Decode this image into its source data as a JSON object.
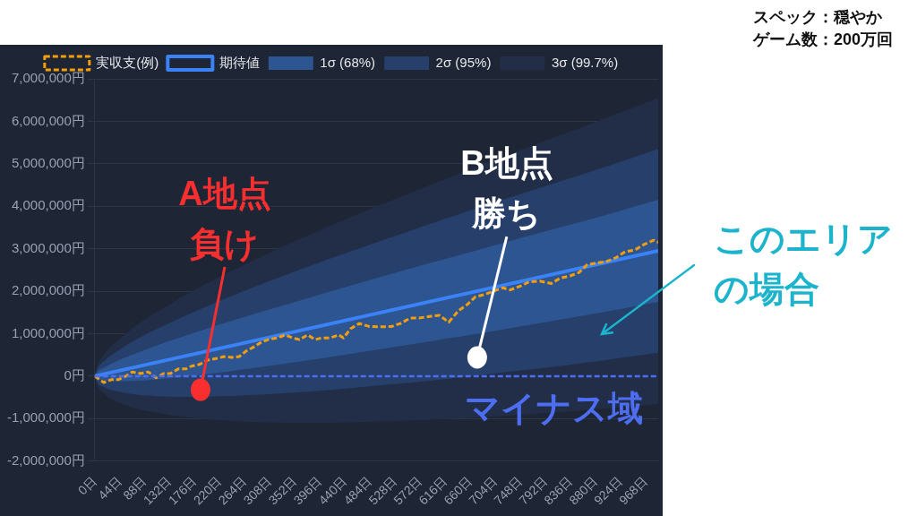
{
  "chart_data": {
    "type": "line",
    "xlim": [
      0,
      990
    ],
    "xticks": [
      {
        "value": 0,
        "label": "0日"
      },
      {
        "value": 44,
        "label": "44日"
      },
      {
        "value": 88,
        "label": "88日"
      },
      {
        "value": 132,
        "label": "132日"
      },
      {
        "value": 176,
        "label": "176日"
      },
      {
        "value": 220,
        "label": "220日"
      },
      {
        "value": 264,
        "label": "264日"
      },
      {
        "value": 308,
        "label": "308日"
      },
      {
        "value": 352,
        "label": "352日"
      },
      {
        "value": 396,
        "label": "396日"
      },
      {
        "value": 440,
        "label": "440日"
      },
      {
        "value": 484,
        "label": "484日"
      },
      {
        "value": 528,
        "label": "528日"
      },
      {
        "value": 572,
        "label": "572日"
      },
      {
        "value": 616,
        "label": "616日"
      },
      {
        "value": 660,
        "label": "660日"
      },
      {
        "value": 704,
        "label": "704日"
      },
      {
        "value": 748,
        "label": "748日"
      },
      {
        "value": 792,
        "label": "792日"
      },
      {
        "value": 836,
        "label": "836日"
      },
      {
        "value": 880,
        "label": "880日"
      },
      {
        "value": 924,
        "label": "924日"
      },
      {
        "value": 968,
        "label": "968日"
      }
    ],
    "ylim": [
      -2000000,
      7000000
    ],
    "yticks": [
      {
        "value": -2000000,
        "label": "-2,000,000円"
      },
      {
        "value": -1000000,
        "label": "-1,000,000円"
      },
      {
        "value": 0,
        "label": "0円"
      },
      {
        "value": 1000000,
        "label": "1,000,000円"
      },
      {
        "value": 2000000,
        "label": "2,000,000円"
      },
      {
        "value": 3000000,
        "label": "3,000,000円"
      },
      {
        "value": 4000000,
        "label": "4,000,000円"
      },
      {
        "value": 5000000,
        "label": "5,000,000円"
      },
      {
        "value": 6000000,
        "label": "6,000,000円"
      },
      {
        "value": 7000000,
        "label": "7,000,000円"
      }
    ],
    "grid": "y",
    "legend": "top",
    "marker": "none",
    "series": [
      {
        "name": "実収支(例)",
        "type": "line",
        "color": "#f59e0b",
        "line_style": "dashed",
        "x": [
          0,
          16,
          30,
          42,
          55,
          66,
          81,
          94,
          108,
          121,
          133,
          147,
          160,
          171,
          183,
          199,
          215,
          227,
          241,
          254,
          266,
          280,
          293,
          305,
          320,
          335,
          348,
          360,
          374,
          387,
          399,
          414,
          429,
          437,
          450,
          465,
          482,
          501,
          522,
          537,
          555,
          570,
          591,
          606,
          622,
          639,
          655,
          669,
          685,
          700,
          717,
          730,
          750,
          763,
          782,
          802,
          818,
          835,
          851,
          865,
          880,
          899,
          916,
          932,
          949,
          965,
          982,
          990
        ],
        "values": [
          0,
          -150000,
          -80000,
          -80000,
          0,
          100000,
          60000,
          100000,
          -40000,
          60000,
          60000,
          170000,
          170000,
          240000,
          270000,
          380000,
          420000,
          460000,
          440000,
          460000,
          590000,
          690000,
          800000,
          860000,
          900000,
          970000,
          900000,
          860000,
          970000,
          860000,
          900000,
          900000,
          970000,
          900000,
          1120000,
          1240000,
          1170000,
          1160000,
          1170000,
          1240000,
          1370000,
          1370000,
          1410000,
          1430000,
          1270000,
          1540000,
          1690000,
          1870000,
          1920000,
          2000000,
          2080000,
          2030000,
          2130000,
          2220000,
          2240000,
          2180000,
          2310000,
          2360000,
          2440000,
          2620000,
          2660000,
          2700000,
          2790000,
          2930000,
          2970000,
          3100000,
          3200000,
          3150000
        ]
      },
      {
        "name": "期待値",
        "type": "line",
        "color": "#3b82f6",
        "line_style": "solid",
        "x": [
          0,
          990
        ],
        "values": [
          0,
          2950000
        ]
      },
      {
        "name": "1σ (68%)",
        "type": "area",
        "color": "#2d5591",
        "x": [
          0,
          5,
          15,
          30,
          50,
          75,
          100,
          150,
          200,
          250,
          300,
          400,
          500,
          600,
          700,
          800,
          900,
          990
        ],
        "values": [
          null,
          null,
          null,
          null,
          null,
          null,
          null,
          null,
          null,
          null,
          null,
          null,
          null,
          null,
          null,
          null,
          null,
          null
        ],
        "lower": [
          0,
          -70000,
          -100000,
          -120000,
          -120000,
          -110000,
          -90000,
          -20000,
          50000,
          140000,
          230000,
          420000,
          630000,
          840000,
          1060000,
          1290000,
          1520000,
          1750000
        ],
        "upper": [
          0,
          100000,
          190000,
          300000,
          420000,
          550000,
          680000,
          910000,
          1130000,
          1340000,
          1540000,
          1940000,
          2330000,
          2700000,
          3070000,
          3440000,
          3800000,
          4150000
        ]
      },
      {
        "name": "2σ (95%)",
        "type": "area",
        "color": "#263f6b",
        "x": [
          0,
          5,
          15,
          30,
          50,
          75,
          100,
          150,
          200,
          250,
          300,
          400,
          500,
          600,
          700,
          800,
          900,
          990
        ],
        "values": [
          null,
          null,
          null,
          null,
          null,
          null,
          null,
          null,
          null,
          null,
          null,
          null,
          null,
          null,
          null,
          null,
          null,
          null
        ],
        "lower": [
          0,
          -160000,
          -250000,
          -330000,
          -390000,
          -440000,
          -460000,
          -490000,
          -480000,
          -460000,
          -430000,
          -340000,
          -220000,
          -90000,
          60000,
          210000,
          380000,
          550000
        ],
        "upper": [
          0,
          180000,
          340000,
          500000,
          680000,
          880000,
          1050000,
          1370000,
          1660000,
          1940000,
          2200000,
          2700000,
          3170000,
          3630000,
          4080000,
          4510000,
          4940000,
          5350000
        ]
      },
      {
        "name": "3σ (99.7%)",
        "type": "area",
        "color": "#222e48",
        "x": [
          0,
          5,
          15,
          30,
          50,
          75,
          100,
          150,
          200,
          250,
          300,
          400,
          500,
          600,
          700,
          800,
          900,
          990
        ],
        "values": [
          null,
          null,
          null,
          null,
          null,
          null,
          null,
          null,
          null,
          null,
          null,
          null,
          null,
          null,
          null,
          null,
          null,
          null
        ],
        "lower": [
          0,
          -240000,
          -400000,
          -540000,
          -660000,
          -770000,
          -840000,
          -950000,
          -1020000,
          -1060000,
          -1090000,
          -1100000,
          -1070000,
          -1020000,
          -950000,
          -860000,
          -760000,
          -650000
        ],
        "upper": [
          0,
          270000,
          490000,
          710000,
          950000,
          1210000,
          1430000,
          1840000,
          2200000,
          2540000,
          2860000,
          3460000,
          4020000,
          4560000,
          5080000,
          5580000,
          6080000,
          6550000
        ]
      }
    ],
    "ref_lines": [
      {
        "axis": "y",
        "value": 0,
        "color": "#4e6ef2",
        "line_style": "dashed"
      }
    ],
    "annotations": [
      {
        "text": "A地点負け",
        "x": 186,
        "y": -320000
      },
      {
        "text": "B地点勝ち",
        "x": 672,
        "y": 440000
      },
      "マイナス域",
      "このエリアの場合",
      "スペック：穏やか",
      "ゲーム数：200万回"
    ]
  }
}
